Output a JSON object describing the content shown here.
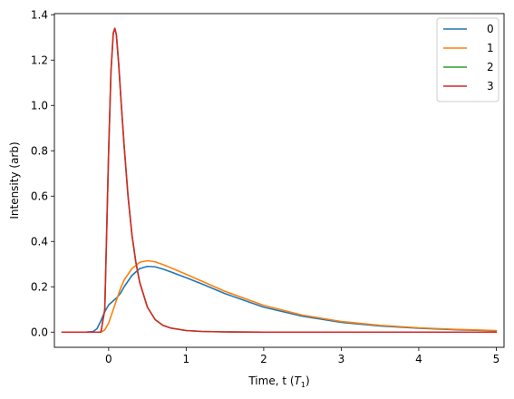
{
  "chart_data": {
    "type": "line",
    "title": "",
    "xlabel": "Time, t (",
    "xlabel_symbol": "T",
    "xlabel_subscript": "1",
    "xlabel_close": ")",
    "ylabel": "Intensity (arb)",
    "xlim": [
      -0.7,
      5.1
    ],
    "ylim": [
      -0.067,
      1.405
    ],
    "xticks": [
      0,
      1,
      2,
      3,
      4,
      5
    ],
    "xtick_labels": [
      "0",
      "1",
      "2",
      "3",
      "4",
      "5"
    ],
    "yticks": [
      0.0,
      0.2,
      0.4,
      0.6,
      0.8,
      1.0,
      1.2,
      1.4
    ],
    "ytick_labels": [
      "0.0",
      "0.2",
      "0.4",
      "0.6",
      "0.8",
      "1.0",
      "1.2",
      "1.4"
    ],
    "grid": false,
    "legend_position": "top-right",
    "series": [
      {
        "name": "0",
        "color": "#1f77b4",
        "x": [
          -0.6,
          -0.3,
          -0.2,
          -0.15,
          -0.1,
          -0.05,
          0.0,
          0.05,
          0.1,
          0.15,
          0.2,
          0.3,
          0.4,
          0.5,
          0.6,
          0.7,
          0.8,
          1.0,
          1.2,
          1.5,
          2.0,
          2.5,
          3.0,
          3.5,
          4.0,
          4.5,
          5.0
        ],
        "y": [
          0.0,
          0.0,
          0.003,
          0.015,
          0.05,
          0.09,
          0.12,
          0.135,
          0.15,
          0.17,
          0.2,
          0.25,
          0.28,
          0.29,
          0.288,
          0.278,
          0.266,
          0.24,
          0.213,
          0.17,
          0.11,
          0.07,
          0.043,
          0.027,
          0.017,
          0.01,
          0.006
        ]
      },
      {
        "name": "1",
        "color": "#ff7f0e",
        "x": [
          -0.6,
          -0.1,
          -0.05,
          0.0,
          0.05,
          0.1,
          0.15,
          0.2,
          0.3,
          0.4,
          0.5,
          0.6,
          0.7,
          0.8,
          1.0,
          1.2,
          1.5,
          2.0,
          2.5,
          3.0,
          3.5,
          4.0,
          4.5,
          5.0
        ],
        "y": [
          0.0,
          0.0,
          0.01,
          0.04,
          0.09,
          0.14,
          0.19,
          0.23,
          0.28,
          0.308,
          0.315,
          0.31,
          0.298,
          0.284,
          0.255,
          0.225,
          0.18,
          0.118,
          0.075,
          0.047,
          0.03,
          0.019,
          0.012,
          0.007
        ]
      },
      {
        "name": "2",
        "color": "#2ca02c",
        "x": [
          -0.6,
          -0.1,
          -0.05,
          0.0,
          0.03,
          0.06,
          0.08,
          0.1,
          0.13,
          0.16,
          0.2,
          0.25,
          0.3,
          0.35,
          0.4,
          0.5,
          0.6,
          0.7,
          0.8,
          1.0,
          1.2,
          1.5,
          2.0,
          3.0,
          4.0,
          5.0
        ],
        "y": [
          0.0,
          0.0,
          0.1,
          0.8,
          1.15,
          1.32,
          1.34,
          1.31,
          1.18,
          1.02,
          0.82,
          0.6,
          0.43,
          0.31,
          0.22,
          0.11,
          0.055,
          0.03,
          0.018,
          0.007,
          0.003,
          0.001,
          0.0,
          0.0,
          0.0,
          0.0
        ]
      },
      {
        "name": "3",
        "color": "#d62728",
        "x": [
          -0.6,
          -0.1,
          -0.05,
          0.0,
          0.03,
          0.06,
          0.08,
          0.1,
          0.13,
          0.16,
          0.2,
          0.25,
          0.3,
          0.35,
          0.4,
          0.5,
          0.6,
          0.7,
          0.8,
          1.0,
          1.2,
          1.5,
          2.0,
          3.0,
          4.0,
          5.0
        ],
        "y": [
          0.0,
          0.0,
          0.1,
          0.8,
          1.15,
          1.32,
          1.34,
          1.31,
          1.18,
          1.02,
          0.82,
          0.6,
          0.43,
          0.31,
          0.22,
          0.11,
          0.055,
          0.03,
          0.018,
          0.007,
          0.003,
          0.001,
          0.0,
          0.0,
          0.0,
          0.0
        ]
      }
    ]
  }
}
